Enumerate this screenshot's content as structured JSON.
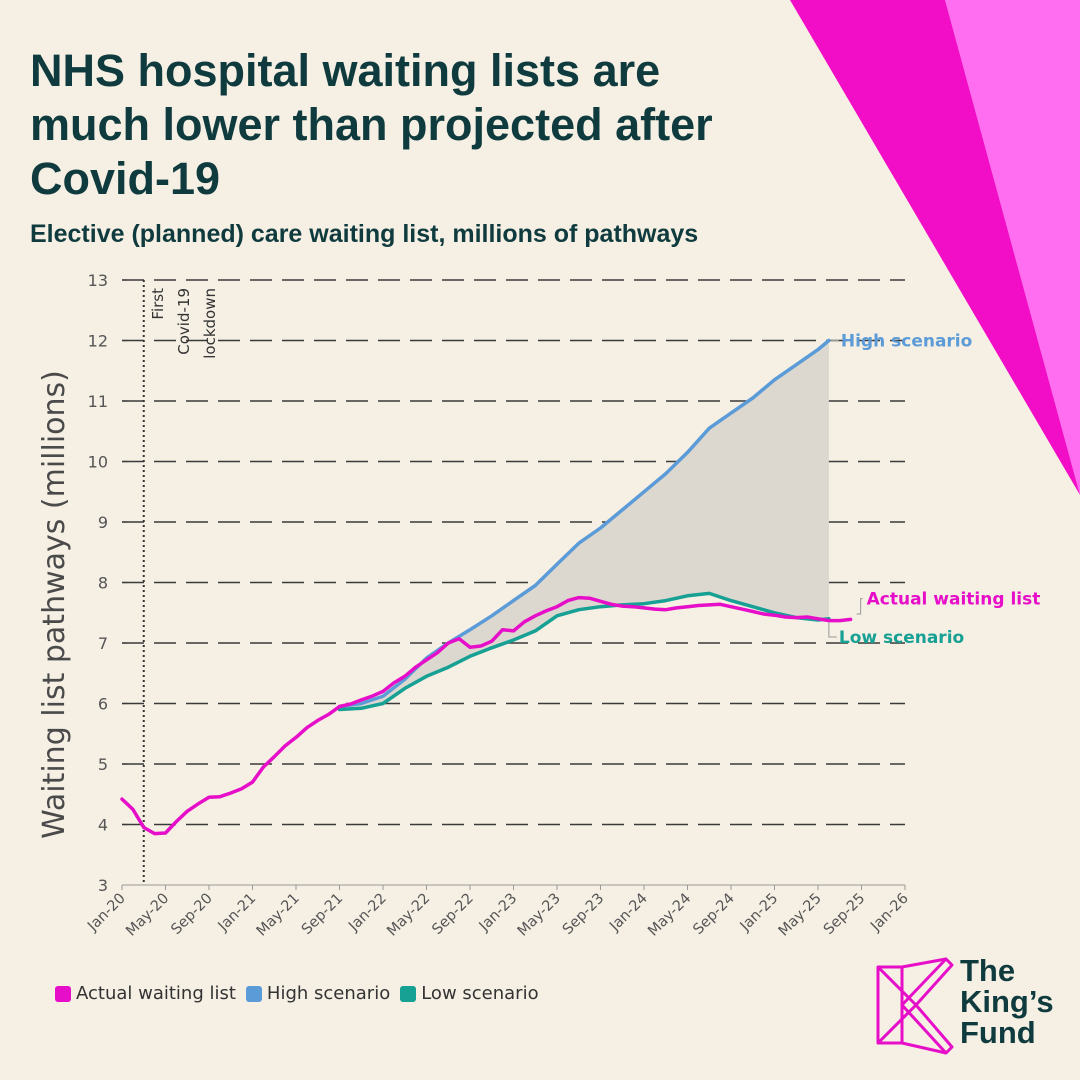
{
  "header": {
    "title": "NHS hospital waiting lists are much lower than projected after Covid-19",
    "subtitle": "Elective (planned) care waiting list, millions of pathways"
  },
  "colors": {
    "background": "#f5efe4",
    "actual": "#e60ec8",
    "high": "#5b9bd8",
    "low": "#17a094",
    "shade": "#dcd8d0",
    "title": "#0f3b3e",
    "decor_dark": "#f20dc6",
    "decor_light": "#ff6ef0"
  },
  "chart_data": {
    "type": "line",
    "ylabel": "Waiting list pathways (millions)",
    "ylim": [
      3,
      13
    ],
    "y_ticks": [
      "3",
      "4",
      "5",
      "6",
      "7",
      "8",
      "9",
      "10",
      "11",
      "12",
      "13"
    ],
    "x_ticks": [
      "Jan-20",
      "May-20",
      "Sep-20",
      "Jan-21",
      "May-21",
      "Sep-21",
      "Jan-22",
      "May-22",
      "Sep-22",
      "Jan-23",
      "May-23",
      "Sep-23",
      "Jan-24",
      "May-24",
      "Sep-24",
      "Jan-25",
      "May-25",
      "Sep-25",
      "Jan-26"
    ],
    "grid": "horizontal dashed",
    "annotation": {
      "date": "Mar-20",
      "lines": [
        "First",
        "Covid-19",
        "lockdown"
      ]
    },
    "series": [
      {
        "name": "Actual waiting list",
        "color": "#e60ec8",
        "points": [
          [
            "Jan-20",
            4.42
          ],
          [
            "Feb-20",
            4.25
          ],
          [
            "Mar-20",
            3.95
          ],
          [
            "Apr-20",
            3.85
          ],
          [
            "May-20",
            3.86
          ],
          [
            "Jun-20",
            4.05
          ],
          [
            "Jul-20",
            4.22
          ],
          [
            "Aug-20",
            4.34
          ],
          [
            "Sep-20",
            4.45
          ],
          [
            "Oct-20",
            4.46
          ],
          [
            "Nov-20",
            4.52
          ],
          [
            "Dec-20",
            4.59
          ],
          [
            "Jan-21",
            4.7
          ],
          [
            "Feb-21",
            4.95
          ],
          [
            "Mar-21",
            5.12
          ],
          [
            "Apr-21",
            5.3
          ],
          [
            "May-21",
            5.44
          ],
          [
            "Jun-21",
            5.6
          ],
          [
            "Jul-21",
            5.72
          ],
          [
            "Aug-21",
            5.82
          ],
          [
            "Sep-21",
            5.95
          ],
          [
            "Oct-21",
            5.99
          ],
          [
            "Nov-21",
            6.06
          ],
          [
            "Dec-21",
            6.12
          ],
          [
            "Jan-22",
            6.2
          ],
          [
            "Feb-22",
            6.34
          ],
          [
            "Mar-22",
            6.45
          ],
          [
            "Apr-22",
            6.6
          ],
          [
            "May-22",
            6.72
          ],
          [
            "Jun-22",
            6.84
          ],
          [
            "Jul-22",
            7.0
          ],
          [
            "Aug-22",
            7.07
          ],
          [
            "Sep-22",
            6.93
          ],
          [
            "Oct-22",
            6.95
          ],
          [
            "Nov-22",
            7.03
          ],
          [
            "Dec-22",
            7.22
          ],
          [
            "Jan-23",
            7.2
          ],
          [
            "Feb-23",
            7.35
          ],
          [
            "Mar-23",
            7.45
          ],
          [
            "Apr-23",
            7.53
          ],
          [
            "May-23",
            7.6
          ],
          [
            "Jun-23",
            7.7
          ],
          [
            "Jul-23",
            7.75
          ],
          [
            "Aug-23",
            7.74
          ],
          [
            "Sep-23",
            7.69
          ],
          [
            "Oct-23",
            7.64
          ],
          [
            "Nov-23",
            7.61
          ],
          [
            "Dec-23",
            7.6
          ],
          [
            "Jan-24",
            7.58
          ],
          [
            "Feb-24",
            7.56
          ],
          [
            "Mar-24",
            7.55
          ],
          [
            "Apr-24",
            7.58
          ],
          [
            "May-24",
            7.6
          ],
          [
            "Jun-24",
            7.62
          ],
          [
            "Jul-24",
            7.63
          ],
          [
            "Aug-24",
            7.64
          ],
          [
            "Sep-24",
            7.6
          ],
          [
            "Oct-24",
            7.56
          ],
          [
            "Nov-24",
            7.52
          ],
          [
            "Dec-24",
            7.48
          ],
          [
            "Jan-25",
            7.46
          ],
          [
            "Feb-25",
            7.43
          ],
          [
            "Mar-25",
            7.42
          ],
          [
            "Apr-25",
            7.43
          ],
          [
            "May-25",
            7.4
          ],
          [
            "Jun-25",
            7.37
          ],
          [
            "Jul-25",
            7.37
          ],
          [
            "Aug-25",
            7.39
          ]
        ]
      },
      {
        "name": "High scenario",
        "color": "#5b9bd8",
        "points": [
          [
            "Sep-21",
            5.95
          ],
          [
            "Nov-21",
            6.0
          ],
          [
            "Jan-22",
            6.12
          ],
          [
            "Mar-22",
            6.4
          ],
          [
            "May-22",
            6.75
          ],
          [
            "Jul-22",
            7.0
          ],
          [
            "Sep-22",
            7.22
          ],
          [
            "Nov-22",
            7.45
          ],
          [
            "Jan-23",
            7.7
          ],
          [
            "Mar-23",
            7.95
          ],
          [
            "May-23",
            8.3
          ],
          [
            "Jul-23",
            8.65
          ],
          [
            "Sep-23",
            8.9
          ],
          [
            "Nov-23",
            9.2
          ],
          [
            "Jan-24",
            9.5
          ],
          [
            "Mar-24",
            9.8
          ],
          [
            "May-24",
            10.15
          ],
          [
            "Jul-24",
            10.55
          ],
          [
            "Sep-24",
            10.8
          ],
          [
            "Nov-24",
            11.05
          ],
          [
            "Jan-25",
            11.35
          ],
          [
            "Mar-25",
            11.6
          ],
          [
            "May-25",
            11.85
          ],
          [
            "Jun-25",
            12.0
          ]
        ]
      },
      {
        "name": "Low scenario",
        "color": "#17a094",
        "points": [
          [
            "Sep-21",
            5.9
          ],
          [
            "Nov-21",
            5.92
          ],
          [
            "Jan-22",
            6.0
          ],
          [
            "Mar-22",
            6.25
          ],
          [
            "May-22",
            6.45
          ],
          [
            "Jul-22",
            6.6
          ],
          [
            "Sep-22",
            6.78
          ],
          [
            "Nov-22",
            6.92
          ],
          [
            "Jan-23",
            7.05
          ],
          [
            "Mar-23",
            7.2
          ],
          [
            "May-23",
            7.45
          ],
          [
            "Jul-23",
            7.55
          ],
          [
            "Sep-23",
            7.6
          ],
          [
            "Nov-23",
            7.63
          ],
          [
            "Jan-24",
            7.65
          ],
          [
            "Mar-24",
            7.7
          ],
          [
            "May-24",
            7.78
          ],
          [
            "Jul-24",
            7.82
          ],
          [
            "Sep-24",
            7.7
          ],
          [
            "Nov-24",
            7.6
          ],
          [
            "Jan-25",
            7.5
          ],
          [
            "Mar-25",
            7.42
          ],
          [
            "May-25",
            7.38
          ],
          [
            "Jun-25",
            7.4
          ]
        ]
      }
    ],
    "series_labels": {
      "high": "High scenario",
      "actual": "Actual waiting list",
      "low": "Low scenario"
    }
  },
  "legend": [
    {
      "label": "Actual waiting list",
      "color": "#e60ec8"
    },
    {
      "label": "High scenario",
      "color": "#5b9bd8"
    },
    {
      "label": "Low scenario",
      "color": "#17a094"
    }
  ],
  "logo": {
    "lines": [
      "The",
      "King’s",
      "Fund"
    ],
    "color": "#e60ec8"
  }
}
